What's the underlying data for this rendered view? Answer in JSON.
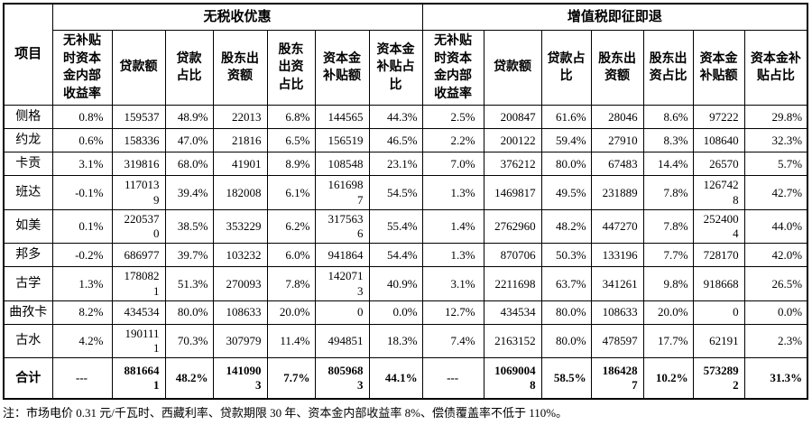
{
  "table": {
    "project_header": "项目",
    "sections": [
      {
        "title": "无税收优惠",
        "columns": [
          "无补贴时资本金内部收益率",
          "贷款额",
          "贷款占比",
          "股东出资额",
          "股东出资占比",
          "资本金补贴额",
          "资本金补贴占比"
        ]
      },
      {
        "title": "增值税即征即退",
        "columns": [
          "无补贴时资本金内部收益率",
          "贷款额",
          "贷款占比",
          "股东出资额",
          "股东出资占比",
          "资本金补贴额",
          "资本金补贴占比"
        ]
      }
    ],
    "rows": [
      {
        "name": "侧格",
        "no_tax": [
          "0.8%",
          "159537",
          "48.9%",
          "22013",
          "6.8%",
          "144565",
          "44.3%"
        ],
        "vat": [
          "2.5%",
          "200847",
          "61.6%",
          "28046",
          "8.6%",
          "97222",
          "29.8%"
        ]
      },
      {
        "name": "约龙",
        "no_tax": [
          "0.6%",
          "158336",
          "47.0%",
          "21816",
          "6.5%",
          "156519",
          "46.5%"
        ],
        "vat": [
          "2.2%",
          "200122",
          "59.4%",
          "27910",
          "8.3%",
          "108640",
          "32.3%"
        ]
      },
      {
        "name": "卡贡",
        "no_tax": [
          "3.1%",
          "319816",
          "68.0%",
          "41901",
          "8.9%",
          "108548",
          "23.1%"
        ],
        "vat": [
          "7.0%",
          "376212",
          "80.0%",
          "67483",
          "14.4%",
          "26570",
          "5.7%"
        ]
      },
      {
        "name": "班达",
        "no_tax": [
          "-0.1%",
          "1170139",
          "39.4%",
          "182008",
          "6.1%",
          "1616987",
          "54.5%"
        ],
        "vat": [
          "1.3%",
          "1469817",
          "49.5%",
          "231889",
          "7.8%",
          "1267428",
          "42.7%"
        ]
      },
      {
        "name": "如美",
        "no_tax": [
          "0.1%",
          "2205370",
          "38.5%",
          "353229",
          "6.2%",
          "3175636",
          "55.4%"
        ],
        "vat": [
          "1.4%",
          "2762960",
          "48.2%",
          "447270",
          "7.8%",
          "2524004",
          "44.0%"
        ]
      },
      {
        "name": "邦多",
        "no_tax": [
          "-0.2%",
          "686977",
          "39.7%",
          "103232",
          "6.0%",
          "941864",
          "54.4%"
        ],
        "vat": [
          "1.3%",
          "870706",
          "50.3%",
          "133196",
          "7.7%",
          "728170",
          "42.0%"
        ]
      },
      {
        "name": "古学",
        "no_tax": [
          "1.3%",
          "1780821",
          "51.3%",
          "270093",
          "7.8%",
          "1420713",
          "40.9%"
        ],
        "vat": [
          "3.1%",
          "2211698",
          "63.7%",
          "341261",
          "9.8%",
          "918668",
          "26.5%"
        ]
      },
      {
        "name": "曲孜卡",
        "no_tax": [
          "8.2%",
          "434534",
          "80.0%",
          "108633",
          "20.0%",
          "0",
          "0.0%"
        ],
        "vat": [
          "12.7%",
          "434534",
          "80.0%",
          "108633",
          "20.0%",
          "0",
          "0.0%"
        ]
      },
      {
        "name": "古水",
        "no_tax": [
          "4.2%",
          "1901111",
          "70.3%",
          "307979",
          "11.4%",
          "494851",
          "18.3%"
        ],
        "vat": [
          "7.4%",
          "2163152",
          "80.0%",
          "478597",
          "17.7%",
          "62191",
          "2.3%"
        ]
      },
      {
        "name": "合计",
        "total": true,
        "no_tax": [
          "---",
          "8816641",
          "48.2%",
          "1410903",
          "7.7%",
          "8059683",
          "44.1%"
        ],
        "vat": [
          "---",
          "10690048",
          "58.5%",
          "1864287",
          "10.2%",
          "5732892",
          "31.3%"
        ]
      }
    ]
  },
  "note": "注：市场电价 0.31 元/千瓦时、西藏利率、贷款期限 30 年、资本金内部收益率 8%、偿债覆盖率不低于 110%。"
}
